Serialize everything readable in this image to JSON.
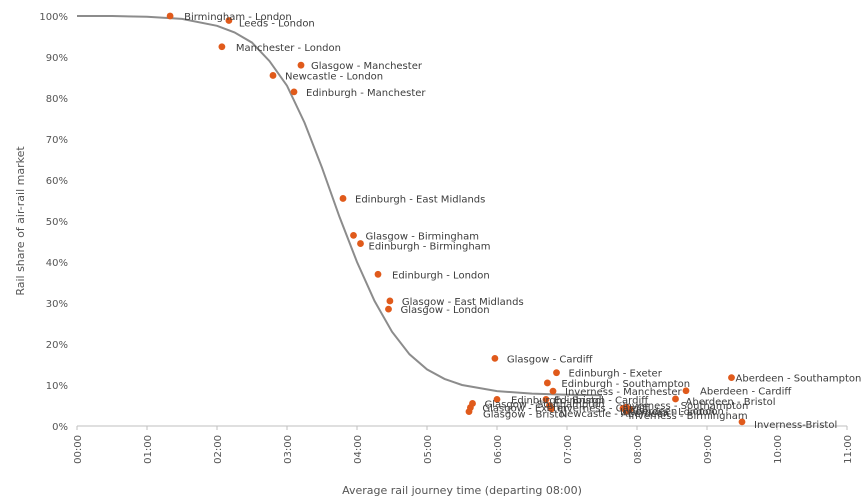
{
  "chart_data": {
    "type": "scatter",
    "title": "",
    "xlabel": "Average rail journey time (departing 08:00)",
    "ylabel": "Rail share of air-rail market",
    "x_unit": "hours",
    "xlim": [
      0,
      11
    ],
    "ylim": [
      0,
      100
    ],
    "x_ticks": [
      "00:00",
      "01:00",
      "02:00",
      "03:00",
      "04:00",
      "05:00",
      "06:00",
      "07:00",
      "08:00",
      "09:00",
      "10:00",
      "11:00"
    ],
    "y_ticks": [
      "0%",
      "10%",
      "20%",
      "30%",
      "40%",
      "50%",
      "60%",
      "70%",
      "80%",
      "90%",
      "100%"
    ],
    "grid": false,
    "legend": "none",
    "colors": {
      "points": "#e05a1b",
      "curve": "#8c8c8c",
      "axis": "#bfbfbf",
      "text": "#555555"
    },
    "points": [
      {
        "label": "Birmingham - London",
        "x": 1.33,
        "y": 100,
        "dx": 14,
        "dy": 4
      },
      {
        "label": "Leeds - London",
        "x": 2.17,
        "y": 98.9,
        "dx": 0,
        "dy": 6
      },
      {
        "label": "Manchester - London",
        "x": 2.07,
        "y": 92.5,
        "dx": 14,
        "dy": 4
      },
      {
        "label": "Glasgow - Manchester",
        "x": 3.2,
        "y": 88,
        "dx": 10,
        "dy": 4
      },
      {
        "label": "Newcastle - London",
        "x": 2.8,
        "y": 85.5,
        "dx": 12,
        "dy": 4
      },
      {
        "label": "Edinburgh - Manchester",
        "x": 3.1,
        "y": 81.5,
        "dx": 12,
        "dy": 4
      },
      {
        "label": "Edinburgh - East Midlands",
        "x": 3.8,
        "y": 55.5,
        "dx": 12,
        "dy": 4
      },
      {
        "label": "Glasgow - Birmingham",
        "x": 3.95,
        "y": 46.5,
        "dx": 12,
        "dy": 4
      },
      {
        "label": "Edinburgh - Birmingham",
        "x": 4.05,
        "y": 44.5,
        "dx": 8,
        "dy": 6
      },
      {
        "label": "Edinburgh - London",
        "x": 4.3,
        "y": 37,
        "dx": 14,
        "dy": 4
      },
      {
        "label": "Glasgow - East Midlands",
        "x": 4.47,
        "y": 30.5,
        "dx": 12,
        "dy": 4
      },
      {
        "label": "Glasgow - London",
        "x": 4.45,
        "y": 28.5,
        "dx": 12,
        "dy": 4
      },
      {
        "label": "Glasgow - Cardiff",
        "x": 5.97,
        "y": 16.5,
        "dx": 12,
        "dy": 4
      },
      {
        "label": "Edinburgh - Exeter",
        "x": 6.85,
        "y": 13,
        "dx": 12,
        "dy": 4
      },
      {
        "label": "Edinburgh - Southampton",
        "x": 6.72,
        "y": 10.5,
        "dx": 14,
        "dy": 4
      },
      {
        "label": "Inverness - Manchester",
        "x": 6.8,
        "y": 8.5,
        "dx": 12,
        "dy": 4
      },
      {
        "label": "Aberdeen - Southampton",
        "x": 9.35,
        "y": 11.8,
        "dx": 4,
        "dy": 4
      },
      {
        "label": "Aberdeen - Cardiff",
        "x": 8.7,
        "y": 8.6,
        "dx": 14,
        "dy": 4
      },
      {
        "label": "Aberdeen - Bristol",
        "x": 8.55,
        "y": 6.6,
        "dx": 10,
        "dy": 6
      },
      {
        "label": "Edinburgh - Bristol",
        "x": 6.0,
        "y": 6.5,
        "dx": 14,
        "dy": 4
      },
      {
        "label": "Aberdeen - London",
        "x": 7.8,
        "y": 4.3,
        "dx": 6,
        "dy": 6
      },
      {
        "label": "Inverness - London",
        "x": 7.9,
        "y": 4.1,
        "dx": -10,
        "dy": 6
      },
      {
        "label": "Inverness - Birmingham",
        "x": 7.85,
        "y": 3.6,
        "dx": 2,
        "dy": 8
      },
      {
        "label": "Glasgow - Bristol",
        "x": 5.6,
        "y": 3.5,
        "dx": 14,
        "dy": 6
      },
      {
        "label": "Glasgow - Exeter",
        "x": 5.62,
        "y": 4.5,
        "dx": 12,
        "dy": 4
      },
      {
        "label": "Glasgow - Southampton",
        "x": 5.65,
        "y": 5.5,
        "dx": 12,
        "dy": 4
      },
      {
        "label": "Edinburgh - Cardiff",
        "x": 6.7,
        "y": 6.5,
        "dx": 8,
        "dy": 4
      },
      {
        "label": "Inverness - Cardiff",
        "x": 6.75,
        "y": 5.0,
        "dx": 8,
        "dy": 6
      },
      {
        "label": "Newcastle - Aberdeen",
        "x": 6.78,
        "y": 4.2,
        "dx": 8,
        "dy": 8
      },
      {
        "label": "Inverness - Southampton",
        "x": 7.85,
        "y": 4.6,
        "dx": -4,
        "dy": 2
      },
      {
        "label": "Inverness-Bristol",
        "x": 9.5,
        "y": 1.0,
        "dx": 12,
        "dy": 6
      }
    ],
    "curve": {
      "label": "",
      "x": [
        0,
        0.5,
        1,
        1.5,
        2,
        2.25,
        2.5,
        2.75,
        3,
        3.25,
        3.5,
        3.75,
        4,
        4.25,
        4.5,
        4.75,
        5,
        5.25,
        5.5,
        6,
        6.5,
        7,
        7.5
      ],
      "y": [
        100,
        100,
        99.8,
        99.3,
        97.6,
        96,
        93.5,
        89,
        83,
        74,
        63,
        51,
        40,
        30.5,
        23,
        17.5,
        13.8,
        11.5,
        10,
        8.5,
        7.9,
        7.6,
        7.5
      ]
    }
  }
}
